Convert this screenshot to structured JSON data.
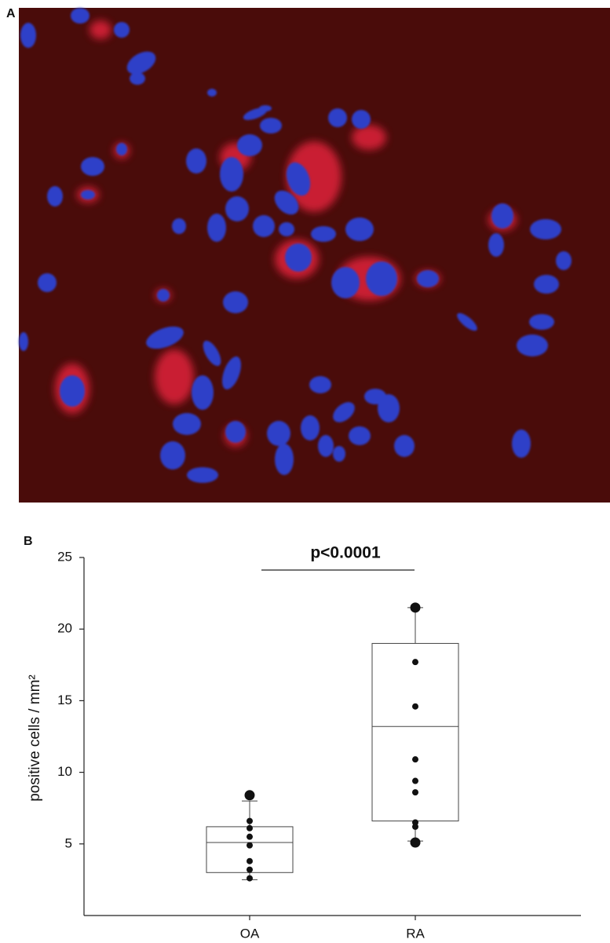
{
  "panel_a": {
    "label": "A"
  },
  "panel_b": {
    "label": "B"
  },
  "chart_data": {
    "type": "box",
    "annotation": "p<0.0001",
    "y_label": "positive cells / mm²",
    "categories": [
      "OA",
      "RA"
    ],
    "boxes": [
      {
        "whisker_low": 2.5,
        "q1": 3.0,
        "median": 5.1,
        "q3": 6.2,
        "whisker_high": 8.0,
        "points": [
          6.6,
          6.1,
          5.5,
          4.9,
          3.8,
          3.2,
          2.6
        ],
        "outliers": [
          8.4
        ]
      },
      {
        "whisker_low": 5.2,
        "q1": 6.6,
        "median": 13.2,
        "q3": 19.0,
        "whisker_high": 21.5,
        "points": [
          17.7,
          14.6,
          10.9,
          9.4,
          8.6,
          6.5,
          6.2
        ],
        "outliers": [
          21.5,
          5.1
        ]
      }
    ],
    "color": "#111111",
    "ylim": [
      0,
      25
    ],
    "yticks": [
      5,
      10,
      15,
      20,
      25
    ],
    "grid": false
  }
}
